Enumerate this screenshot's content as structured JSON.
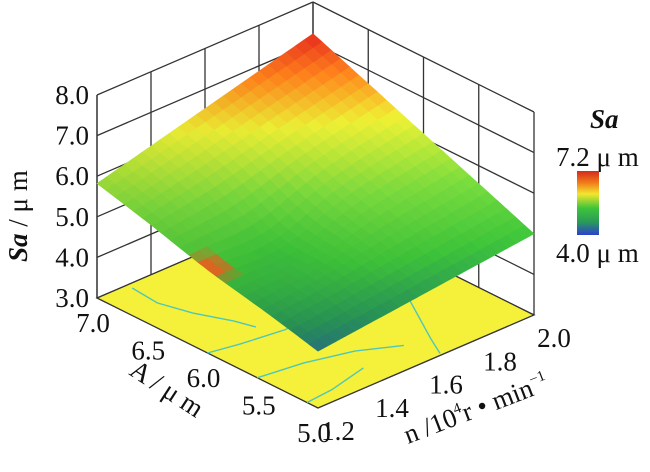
{
  "chart_data": {
    "type": "surface3d",
    "title": "",
    "zlabel_italic": "Sa",
    "zlabel_rest": " / μ m",
    "xlabel": "A / μ m",
    "ylabel_pre": "n /10",
    "ylabel_sup": "4",
    "ylabel_post": "r • min",
    "ylabel_sup2": "−1",
    "x_ticks": [
      "7.0",
      "6.5",
      "6.0",
      "5.5",
      "5.0"
    ],
    "y_ticks": [
      "1.2",
      "1.4",
      "1.6",
      "1.8",
      "2.0"
    ],
    "z_ticks": [
      "3.0",
      "4.0",
      "5.0",
      "6.0",
      "7.0",
      "8.0"
    ],
    "xlim": [
      5.0,
      7.0
    ],
    "ylim": [
      1.2,
      2.0
    ],
    "zlim": [
      3.0,
      8.0
    ],
    "surface_corners": [
      {
        "A": 7.0,
        "n": 1.2,
        "Sa": 5.82
      },
      {
        "A": 7.0,
        "n": 2.0,
        "Sa": 7.22
      },
      {
        "A": 5.0,
        "n": 2.0,
        "Sa": 5.0
      },
      {
        "A": 5.0,
        "n": 1.2,
        "Sa": 4.4
      }
    ],
    "colorbar": {
      "title": "Sa",
      "max_label": "7.2 μ m",
      "min_label": "4.0 μ m",
      "max": 7.2,
      "min": 4.0,
      "colors": [
        "#d62a1c",
        "#f07a1a",
        "#f2e62e",
        "#3ec43a",
        "#2a9a5a",
        "#2b3fd0"
      ]
    },
    "floor_color": "#f5f03a",
    "contour_color": "#4fc7b8",
    "grid": true
  }
}
